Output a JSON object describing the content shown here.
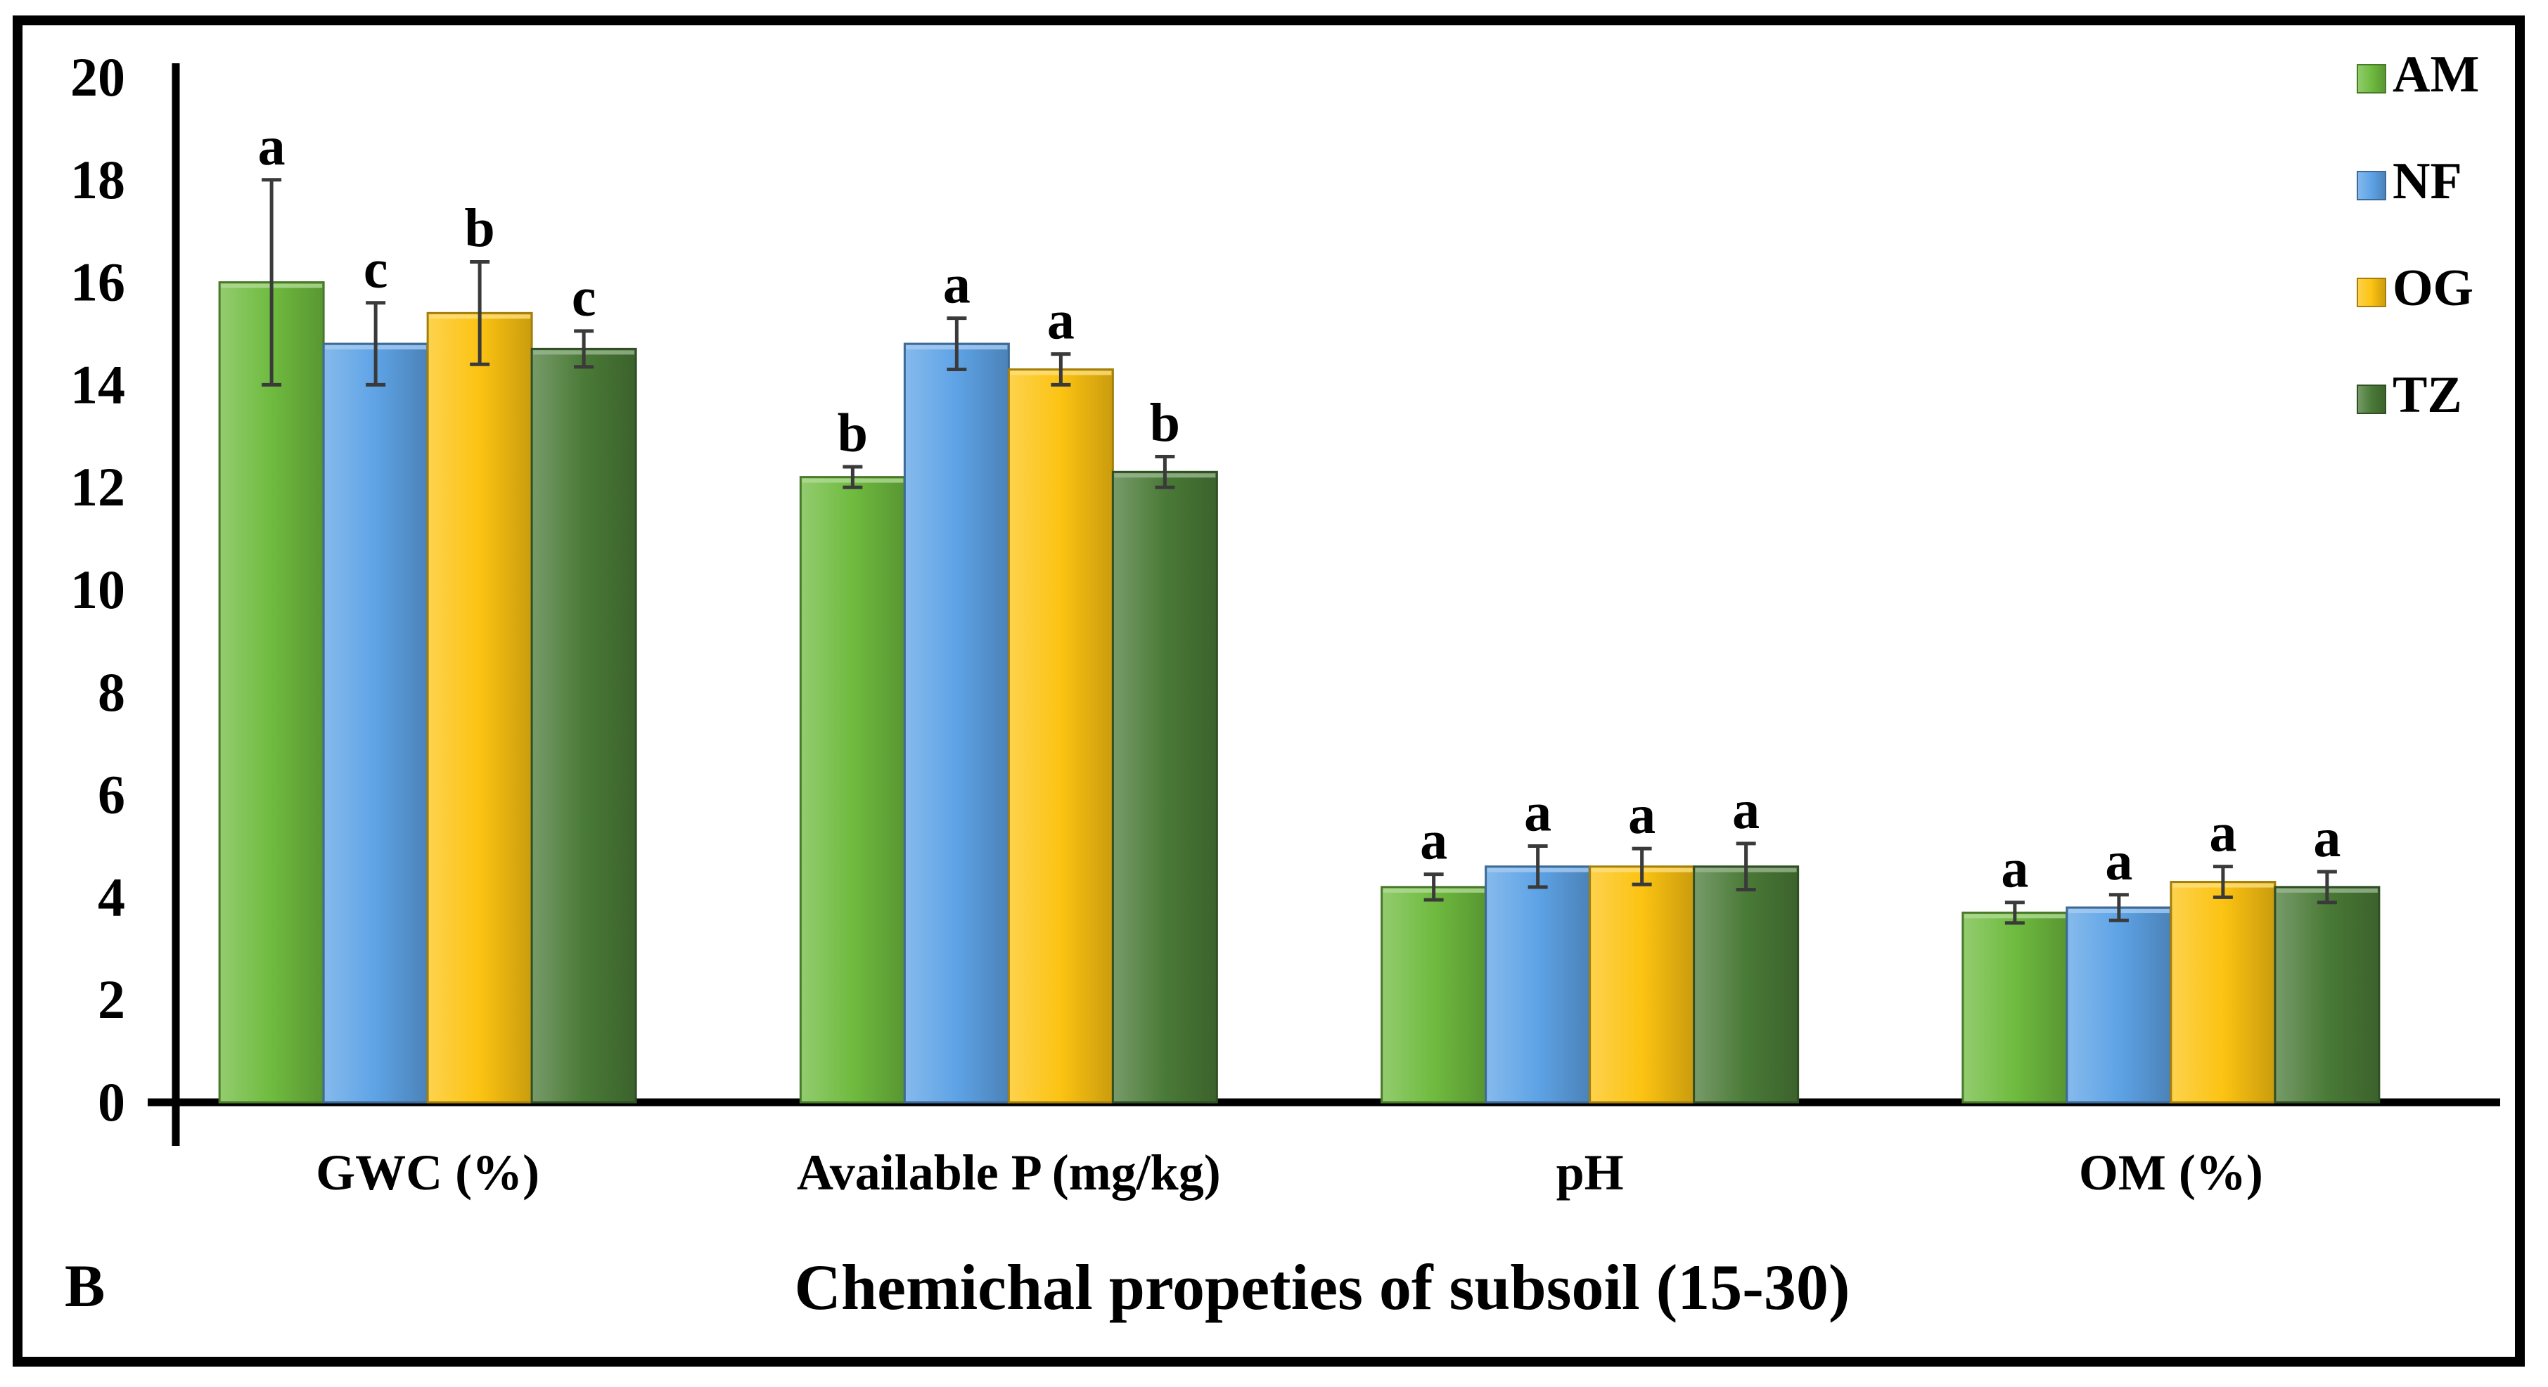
{
  "panel_label": "B",
  "chart_data": {
    "type": "bar",
    "title": "",
    "xlabel": "Chemichal propeties of subsoil (15-30)",
    "ylabel": "",
    "ylim": [
      0,
      20
    ],
    "yticks": [
      0,
      2,
      4,
      6,
      8,
      10,
      12,
      14,
      16,
      18,
      20
    ],
    "categories": [
      "GWC (%)",
      "Available P (mg/kg)",
      "pH",
      "OM (%)"
    ],
    "legend_position": "top-right",
    "series": [
      {
        "name": "AM",
        "color": "#6fbb3f",
        "values": [
          16.0,
          12.2,
          4.2,
          3.7
        ],
        "errors": [
          2.0,
          0.2,
          0.25,
          0.2
        ],
        "letters": [
          "a",
          "b",
          "a",
          "a"
        ]
      },
      {
        "name": "NF",
        "color": "#5ea3e6",
        "values": [
          14.8,
          14.8,
          4.6,
          3.8
        ],
        "errors": [
          0.8,
          0.5,
          0.4,
          0.25
        ],
        "letters": [
          "c",
          "a",
          "a",
          "a"
        ]
      },
      {
        "name": "OG",
        "color": "#fcc312",
        "values": [
          15.4,
          14.3,
          4.6,
          4.3
        ],
        "errors": [
          1.0,
          0.3,
          0.35,
          0.3
        ],
        "letters": [
          "b",
          "a",
          "a",
          "a"
        ]
      },
      {
        "name": "TZ",
        "color": "#4a7a37",
        "values": [
          14.7,
          12.3,
          4.6,
          4.2
        ],
        "errors": [
          0.35,
          0.3,
          0.45,
          0.3
        ],
        "letters": [
          "c",
          "b",
          "a",
          "a"
        ]
      }
    ]
  }
}
